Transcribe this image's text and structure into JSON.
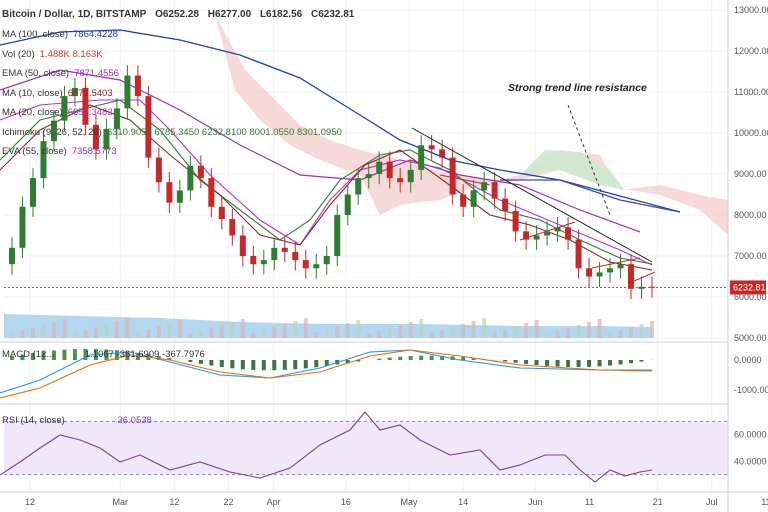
{
  "header": {
    "symbol": "Bitcoin / Dollar, 1D, BITSTAMP",
    "open": "O6252.28",
    "high": "H6277.00",
    "low": "L6182.56",
    "close": "C6232.81"
  },
  "indicators": [
    {
      "label": "MA (100, close)",
      "value": "7864.4228",
      "color": "#1f3fbf"
    },
    {
      "label": "Vol (20)",
      "value": "1.488K  8.163K",
      "color": "#d0392e"
    },
    {
      "label": "EMA (50, close)",
      "value": "7871.4556",
      "color": "#9b2fbf"
    },
    {
      "label": "MA (10, close)",
      "value": "6871.5403",
      "color": "#8a2a2a"
    },
    {
      "label": "MA (20, close)",
      "value": "6652.3482",
      "color": "#bf2fbf"
    },
    {
      "label": "Ichimoku (9, 26, 52, 26)",
      "value": "6310.9050  6785.3450  6232.8100  8001.0550  8301.0950",
      "color": "#2e7d32"
    },
    {
      "label": "EVA (55, close)",
      "value": "7358.5773",
      "color": "#9b2fbf"
    }
  ],
  "annotation": "Strong trend line resistance",
  "last_price_label": "6232.81",
  "macd": {
    "label": "MACD (12...",
    "values": "1.1067  -361.6909  -367.7976"
  },
  "rsi": {
    "label": "RSI (14, close)",
    "value": "36.0538"
  },
  "colors": {
    "up": "#2e7d32",
    "down": "#c62828",
    "cloud": "#f6cccc",
    "cloud_green": "#cde8cd",
    "rsi_band": "#ece2f7"
  },
  "chart_data": [
    {
      "type": "candlestick",
      "title": "Bitcoin / Dollar, 1D, BITSTAMP",
      "ylim": [
        5000,
        13000
      ],
      "price_ticks": [
        "13000.00",
        "12000.00",
        "11000.00",
        "10000.00",
        "9000.00",
        "8000.00",
        "7000.00",
        "6000.00",
        "5000.00"
      ],
      "date_ticks": [
        "12",
        "Mar",
        "12",
        "22",
        "Apr",
        "16",
        "May",
        "14",
        "Jun",
        "11",
        "21",
        "Jul",
        "11"
      ],
      "close_values": [
        7200,
        8200,
        8900,
        9800,
        10300,
        10900,
        11100,
        10200,
        9600,
        10100,
        10600,
        11400,
        10900,
        9400,
        8800,
        8300,
        8600,
        9200,
        8900,
        8200,
        7900,
        7500,
        7000,
        6800,
        6900,
        7200,
        7100,
        6900,
        6700,
        6800,
        7000,
        8000,
        8500,
        8900,
        9000,
        9300,
        8900,
        8800,
        9100,
        9700,
        9600,
        9400,
        8500,
        8200,
        8600,
        8800,
        8400,
        8100,
        7600,
        7400,
        7500,
        7600,
        7700,
        7400,
        6700,
        6500,
        6600,
        6700,
        6800,
        6200,
        6250,
        6232
      ]
    },
    {
      "type": "line",
      "title": "MACD",
      "ylim": [
        -1000,
        1000
      ],
      "ticks": [
        "0.0000",
        "-1000.0000"
      ]
    },
    {
      "type": "line",
      "title": "RSI (14, close)",
      "ylim": [
        20,
        80
      ],
      "ticks": [
        "60.0000",
        "40.0000"
      ]
    }
  ]
}
